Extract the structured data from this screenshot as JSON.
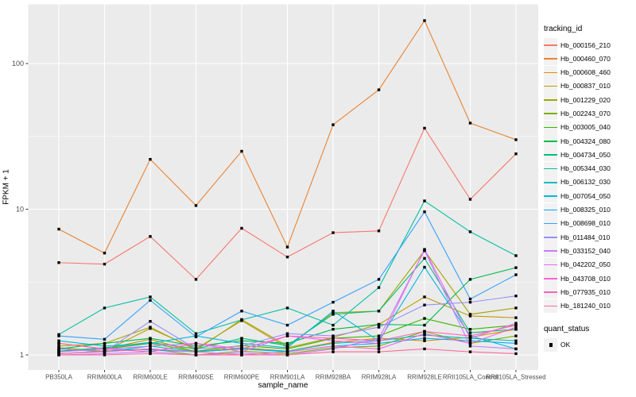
{
  "figure": {
    "background": "#FFFFFF",
    "panel_fill": "#EBEBEB",
    "grid_color": "#FFFFFF",
    "tick_color": "#333333",
    "tick_label_color": "#4D4D4D",
    "point_color": "#000000"
  },
  "axes": {
    "x_title": "sample_name",
    "y_title": "FPKM + 1",
    "y_tick_labels": [
      "1",
      "10",
      "100"
    ]
  },
  "legend": {
    "tracking_title": "tracking_id",
    "quant_title": "quant_status",
    "quant_ok_label": "OK"
  },
  "chart_data": {
    "type": "line",
    "title": "",
    "xlabel": "sample_name",
    "ylabel": "FPKM + 1",
    "y_scale": "log10",
    "y_ticks": [
      1,
      10,
      100
    ],
    "y_minor_ticks": [
      3.162,
      31.62
    ],
    "ylim": [
      0.95,
      230
    ],
    "grid": true,
    "legend_position": "right",
    "point_marker": "black-square",
    "categories": [
      "PB350LA",
      "RRIM600LA",
      "RRIM600LE",
      "RRIM600SE",
      "RRIM600PE",
      "RRIM901LA",
      "RRIM928BA",
      "RRIM928LA",
      "RRIM928LE",
      "RRII105LA_Control",
      "RRII105LA_Stressed"
    ],
    "series": [
      {
        "name": "Hb_000156_210",
        "color": "#F8766D",
        "values": [
          4.3,
          4.2,
          6.5,
          3.3,
          7.4,
          4.7,
          6.9,
          7.1,
          36,
          11.7,
          24
        ]
      },
      {
        "name": "Hb_000460_070",
        "color": "#EA8331",
        "values": [
          7.3,
          5.0,
          22,
          10.6,
          25,
          5.5,
          38,
          66,
          197,
          39,
          30
        ]
      },
      {
        "name": "Hb_000608_460",
        "color": "#D89000",
        "values": [
          1.2,
          1.1,
          1.28,
          1.05,
          1.12,
          1.06,
          1.22,
          1.3,
          1.25,
          1.32,
          1.5
        ]
      },
      {
        "name": "Hb_000837_010",
        "color": "#C09B00",
        "values": [
          1.12,
          1.06,
          1.52,
          1.1,
          1.72,
          1.12,
          1.32,
          1.62,
          2.5,
          1.85,
          1.8
        ]
      },
      {
        "name": "Hb_001229_020",
        "color": "#A3A500",
        "values": [
          1.15,
          1.2,
          1.55,
          1.08,
          1.75,
          1.15,
          1.95,
          2.0,
          5.2,
          1.9,
          2.1
        ]
      },
      {
        "name": "Hb_002243_070",
        "color": "#7CAE00",
        "values": [
          1.02,
          1.06,
          1.1,
          1.0,
          1.06,
          1.02,
          1.12,
          1.15,
          1.45,
          1.2,
          1.35
        ]
      },
      {
        "name": "Hb_003005_040",
        "color": "#39B600",
        "values": [
          1.06,
          1.1,
          1.2,
          1.06,
          1.16,
          1.1,
          1.3,
          1.35,
          1.78,
          1.5,
          1.6
        ]
      },
      {
        "name": "Hb_004324_080",
        "color": "#00BB4E",
        "values": [
          1.1,
          1.2,
          1.3,
          1.15,
          1.25,
          1.2,
          1.5,
          1.62,
          1.6,
          3.3,
          3.97
        ]
      },
      {
        "name": "Hb_004734_050",
        "color": "#00BF7D",
        "values": [
          1.06,
          1.12,
          1.22,
          1.1,
          1.3,
          1.16,
          1.9,
          2.0,
          4.6,
          1.42,
          1.5
        ]
      },
      {
        "name": "Hb_005344_030",
        "color": "#00C1A3",
        "values": [
          1.38,
          2.1,
          2.5,
          1.4,
          1.74,
          2.1,
          1.6,
          2.9,
          11.4,
          7.0,
          4.8
        ]
      },
      {
        "name": "Hb_006132_030",
        "color": "#00BFC4",
        "values": [
          1.1,
          1.05,
          1.15,
          1.05,
          1.1,
          1.06,
          1.2,
          1.25,
          1.37,
          1.3,
          1.25
        ]
      },
      {
        "name": "Hb_007054_050",
        "color": "#00BAE0",
        "values": [
          1.25,
          1.15,
          1.2,
          1.35,
          1.2,
          1.12,
          2.0,
          1.25,
          4.0,
          1.35,
          1.1
        ]
      },
      {
        "name": "Hb_008325_010",
        "color": "#00B0F6",
        "values": [
          1.05,
          1.1,
          1.08,
          1.05,
          1.1,
          1.05,
          1.15,
          1.2,
          1.3,
          1.25,
          1.2
        ]
      },
      {
        "name": "Hb_008698_010",
        "color": "#35A2FF",
        "values": [
          1.35,
          1.28,
          2.37,
          1.33,
          2.0,
          1.6,
          2.3,
          3.3,
          9.6,
          2.42,
          3.55
        ]
      },
      {
        "name": "Hb_011484_010",
        "color": "#9590FF",
        "values": [
          1.1,
          1.05,
          1.7,
          1.1,
          1.15,
          1.4,
          1.35,
          1.55,
          2.2,
          2.3,
          2.54
        ]
      },
      {
        "name": "Hb_033152_040",
        "color": "#C77CFF",
        "values": [
          1.0,
          1.02,
          1.05,
          1.0,
          1.03,
          1.0,
          1.1,
          1.3,
          5.2,
          1.15,
          1.1
        ]
      },
      {
        "name": "Hb_042202_050",
        "color": "#E76BF3",
        "values": [
          1.05,
          1.1,
          1.15,
          1.2,
          1.05,
          1.35,
          1.25,
          1.2,
          5.3,
          1.3,
          1.65
        ]
      },
      {
        "name": "Hb_043708_010",
        "color": "#FA62DB",
        "values": [
          1.02,
          1.05,
          1.1,
          1.05,
          1.0,
          1.05,
          1.15,
          1.1,
          1.4,
          1.2,
          1.55
        ]
      },
      {
        "name": "Hb_077935_010",
        "color": "#FF62BC",
        "values": [
          1.2,
          1.1,
          1.05,
          1.2,
          1.1,
          1.35,
          1.3,
          1.25,
          1.45,
          1.35,
          1.6
        ]
      },
      {
        "name": "Hb_181240_010",
        "color": "#FF6A98",
        "values": [
          1.0,
          1.0,
          1.02,
          1.0,
          1.0,
          1.0,
          1.05,
          1.05,
          1.1,
          1.05,
          1.02
        ]
      }
    ],
    "quant_status": {
      "title": "quant_status",
      "items": [
        "OK"
      ]
    }
  }
}
